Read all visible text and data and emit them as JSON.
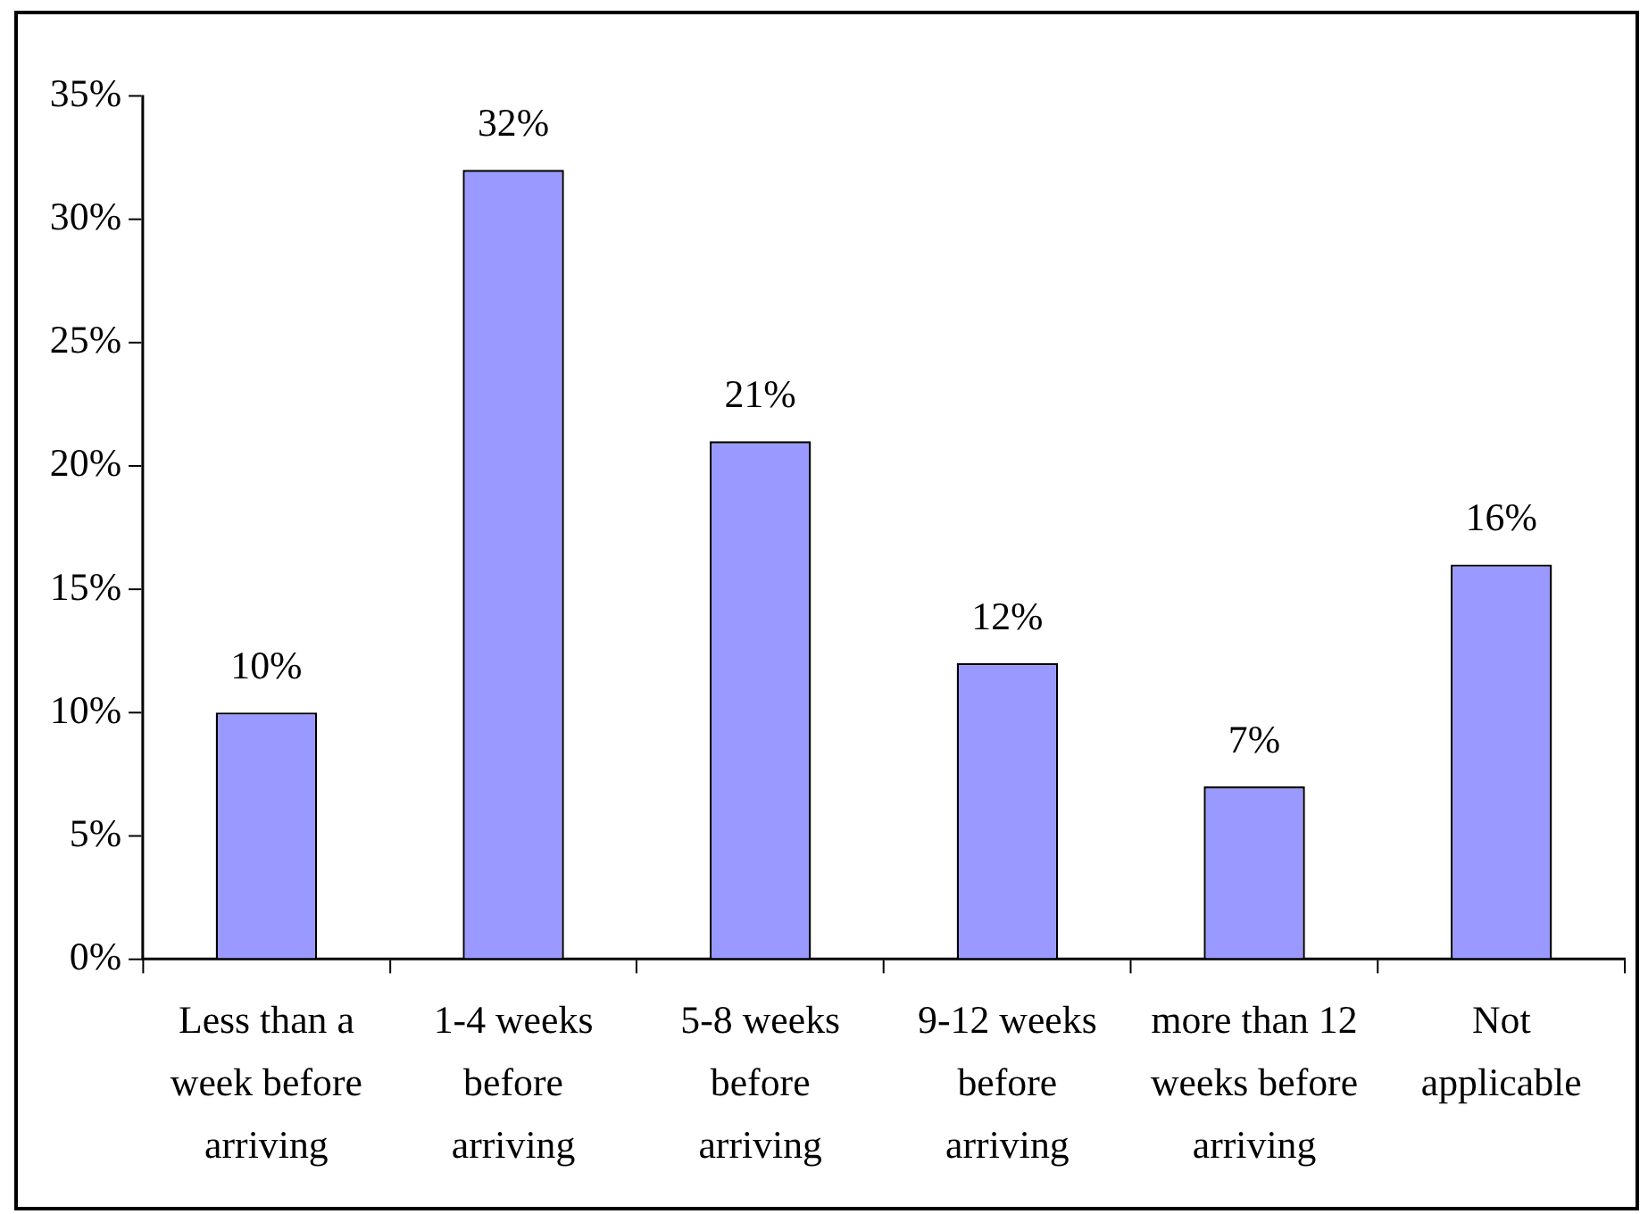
{
  "chart_data": {
    "type": "bar",
    "categories": [
      "Less than a week before arriving",
      "1-4 weeks before arriving",
      "5-8 weeks before arriving",
      "9-12 weeks before arriving",
      "more than 12 weeks before arriving",
      "Not applicable"
    ],
    "values": [
      10,
      32,
      21,
      12,
      7,
      16
    ],
    "value_labels": [
      "10%",
      "32%",
      "21%",
      "12%",
      "7%",
      "16%"
    ],
    "color": "#9999ff",
    "ylim": [
      0,
      35
    ],
    "yticks": [
      {
        "value": 0,
        "label": "0%"
      },
      {
        "value": 5,
        "label": "5%"
      },
      {
        "value": 10,
        "label": "10%"
      },
      {
        "value": 15,
        "label": "15%"
      },
      {
        "value": 20,
        "label": "20%"
      },
      {
        "value": 25,
        "label": "25%"
      },
      {
        "value": 30,
        "label": "30%"
      },
      {
        "value": 35,
        "label": "35%"
      }
    ],
    "grid": false,
    "legend": false
  }
}
